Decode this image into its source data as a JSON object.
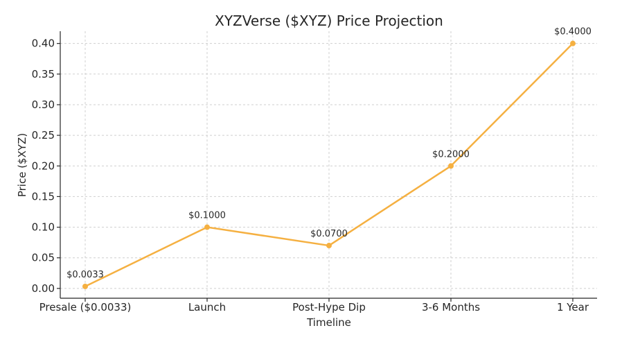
{
  "chart_data": {
    "type": "line",
    "title": "XYZVerse ($XYZ) Price Projection",
    "xlabel": "Timeline",
    "ylabel": "Price ($XYZ)",
    "categories": [
      "Presale ($0.0033)",
      "Launch",
      "Post-Hype Dip",
      "3-6 Months",
      "1 Year"
    ],
    "series": [
      {
        "values": [
          0.0033,
          0.1,
          0.07,
          0.2,
          0.4
        ],
        "labels": [
          "$0.0033",
          "$0.1000",
          "$0.0700",
          "$0.2000",
          "$0.4000"
        ],
        "color": "#f5b041"
      }
    ],
    "ylim": [
      -0.016,
      0.42
    ],
    "yticks": [
      0.0,
      0.05,
      0.1,
      0.15,
      0.2,
      0.25,
      0.3,
      0.35,
      0.4
    ],
    "ytick_labels": [
      "0.00",
      "0.05",
      "0.10",
      "0.15",
      "0.20",
      "0.25",
      "0.30",
      "0.35",
      "0.40"
    ],
    "grid": true,
    "legend": "none"
  }
}
